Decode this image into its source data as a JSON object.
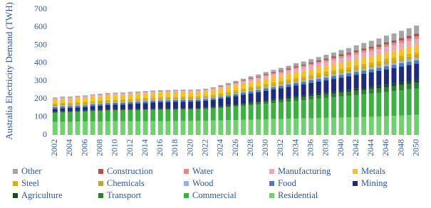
{
  "chart_data": {
    "type": "stacked-bar",
    "y_label": "Australia Electricity Demand (TWH)",
    "categories": [
      "2002",
      null,
      "2004",
      null,
      "2006",
      null,
      "2008",
      null,
      "2010",
      null,
      "2012",
      null,
      "2014",
      null,
      "2016",
      null,
      "2018",
      null,
      "2020",
      null,
      "2022",
      null,
      "2024",
      null,
      "2026",
      null,
      "2028",
      null,
      "2030",
      null,
      "2032",
      null,
      "2034",
      null,
      "2036",
      null,
      "2038",
      null,
      "2040",
      null,
      "2042",
      null,
      "2044",
      null,
      "2046",
      null,
      "2048",
      null,
      "2050"
    ],
    "ylim": [
      0,
      700
    ],
    "yticks": [
      0,
      100,
      200,
      300,
      400,
      500,
      600,
      700
    ],
    "series": [
      {
        "name": "Other",
        "color": "#a5a5a5",
        "values": [
          4,
          4,
          4,
          4,
          4,
          4,
          4,
          4,
          4,
          4,
          4,
          4,
          4,
          4,
          4,
          4,
          4,
          4,
          4,
          4,
          4,
          5,
          6,
          7,
          8,
          9,
          10,
          11,
          12,
          13,
          14,
          15,
          16,
          17,
          18,
          19,
          20,
          22,
          24,
          26,
          28,
          30,
          32,
          34,
          36,
          38,
          40,
          42,
          45
        ]
      },
      {
        "name": "Construction",
        "color": "#b5514d",
        "values": [
          1,
          1,
          1,
          1,
          1,
          1,
          1,
          1,
          1,
          1,
          1,
          1,
          1,
          1,
          1,
          1,
          1,
          1,
          1,
          1,
          1,
          1,
          2,
          2,
          3,
          3,
          4,
          4,
          5,
          5,
          6,
          6,
          7,
          7,
          8,
          8,
          9,
          9,
          10,
          10,
          11,
          11,
          12,
          12,
          13,
          13,
          14,
          14,
          15
        ]
      },
      {
        "name": "Water",
        "color": "#d98c8a",
        "values": [
          2,
          2,
          2,
          2,
          2,
          2,
          2,
          2,
          2,
          2,
          2,
          2,
          2,
          2,
          2,
          2,
          2,
          2,
          2,
          2,
          2,
          2,
          3,
          3,
          4,
          4,
          5,
          5,
          6,
          6,
          7,
          7,
          8,
          8,
          9,
          9,
          10,
          10,
          11,
          11,
          12,
          12,
          13,
          13,
          14,
          14,
          15,
          15,
          16
        ]
      },
      {
        "name": "Manufacturing",
        "color": "#e8aab8",
        "values": [
          5,
          5,
          5,
          5,
          5,
          5,
          5,
          5,
          5,
          5,
          5,
          5,
          5,
          5,
          5,
          5,
          5,
          5,
          5,
          5,
          5,
          6,
          7,
          8,
          9,
          10,
          11,
          12,
          13,
          14,
          15,
          16,
          17,
          18,
          19,
          20,
          21,
          22,
          23,
          24,
          25,
          26,
          27,
          28,
          29,
          30,
          31,
          32,
          33
        ]
      },
      {
        "name": "Metals",
        "color": "#f2c232",
        "values": [
          22,
          23,
          23,
          24,
          24,
          25,
          25,
          26,
          26,
          26,
          26,
          26,
          26,
          26,
          26,
          26,
          26,
          26,
          26,
          26,
          26,
          27,
          27,
          28,
          28,
          29,
          29,
          30,
          30,
          31,
          31,
          32,
          32,
          33,
          33,
          34,
          34,
          35,
          35,
          36,
          36,
          37,
          37,
          38,
          38,
          39,
          39,
          40,
          40
        ]
      },
      {
        "name": "Steel",
        "color": "#d6b400",
        "values": [
          6,
          6,
          6,
          6,
          6,
          6,
          6,
          6,
          6,
          6,
          6,
          6,
          6,
          6,
          6,
          6,
          6,
          6,
          6,
          6,
          6,
          6,
          6,
          7,
          7,
          7,
          8,
          8,
          8,
          9,
          9,
          9,
          10,
          10,
          10,
          11,
          11,
          11,
          12,
          12,
          12,
          13,
          13,
          13,
          14,
          14,
          14,
          15,
          15
        ]
      },
      {
        "name": "Chemicals",
        "color": "#c9a227",
        "values": [
          8,
          8,
          8,
          8,
          8,
          8,
          8,
          8,
          8,
          8,
          8,
          8,
          8,
          8,
          8,
          8,
          8,
          8,
          8,
          8,
          8,
          8,
          8,
          9,
          9,
          9,
          10,
          10,
          10,
          11,
          11,
          11,
          12,
          12,
          12,
          13,
          13,
          13,
          14,
          14,
          14,
          15,
          15,
          15,
          16,
          16,
          16,
          17,
          17
        ]
      },
      {
        "name": "Wood",
        "color": "#8fb4e3",
        "values": [
          5,
          5,
          5,
          5,
          5,
          5,
          5,
          5,
          5,
          5,
          5,
          5,
          5,
          5,
          5,
          5,
          5,
          5,
          5,
          5,
          5,
          5,
          5,
          5,
          6,
          6,
          6,
          6,
          7,
          7,
          7,
          7,
          8,
          8,
          8,
          8,
          9,
          9,
          9,
          9,
          10,
          10,
          10,
          10,
          11,
          11,
          11,
          11,
          12
        ]
      },
      {
        "name": "Food",
        "color": "#4a7ebb",
        "values": [
          10,
          10,
          10,
          10,
          10,
          10,
          10,
          10,
          10,
          10,
          10,
          10,
          10,
          10,
          10,
          10,
          10,
          10,
          10,
          10,
          10,
          10,
          11,
          11,
          11,
          12,
          12,
          12,
          13,
          13,
          13,
          14,
          14,
          14,
          15,
          15,
          15,
          16,
          16,
          16,
          17,
          17,
          17,
          18,
          18,
          18,
          19,
          19,
          19
        ]
      },
      {
        "name": "Mining",
        "color": "#1f2a78",
        "values": [
          15,
          16,
          16,
          17,
          18,
          20,
          22,
          23,
          24,
          25,
          27,
          29,
          31,
          33,
          34,
          35,
          36,
          36,
          36,
          36,
          37,
          38,
          40,
          42,
          44,
          46,
          48,
          50,
          52,
          54,
          56,
          58,
          60,
          62,
          64,
          66,
          68,
          70,
          72,
          74,
          76,
          78,
          80,
          82,
          84,
          86,
          88,
          90,
          92
        ]
      },
      {
        "name": "Agriculture",
        "color": "#1b4d1b",
        "values": [
          5,
          5,
          5,
          5,
          5,
          5,
          5,
          5,
          5,
          5,
          5,
          5,
          5,
          5,
          5,
          5,
          5,
          5,
          5,
          5,
          5,
          5,
          6,
          6,
          6,
          7,
          7,
          7,
          8,
          8,
          8,
          9,
          9,
          9,
          10,
          10,
          10,
          11,
          11,
          11,
          12,
          12,
          12,
          13,
          13,
          13,
          14,
          14,
          14
        ]
      },
      {
        "name": "Transport",
        "color": "#2e7d32",
        "values": [
          3,
          3,
          3,
          3,
          3,
          3,
          3,
          3,
          3,
          3,
          3,
          3,
          3,
          3,
          3,
          3,
          3,
          3,
          3,
          3,
          4,
          5,
          6,
          7,
          8,
          9,
          10,
          11,
          12,
          13,
          14,
          15,
          16,
          17,
          18,
          19,
          20,
          21,
          22,
          23,
          24,
          25,
          26,
          27,
          28,
          29,
          30,
          31,
          32
        ]
      },
      {
        "name": "Commercial",
        "color": "#3cb043",
        "values": [
          50,
          52,
          53,
          54,
          55,
          57,
          58,
          59,
          60,
          60,
          61,
          61,
          62,
          62,
          63,
          63,
          63,
          63,
          63,
          64,
          65,
          67,
          69,
          72,
          75,
          78,
          81,
          84,
          87,
          90,
          93,
          96,
          99,
          102,
          105,
          108,
          111,
          114,
          117,
          120,
          123,
          126,
          129,
          132,
          135,
          138,
          141,
          144,
          147
        ]
      },
      {
        "name": "Residential",
        "color": "#72d072",
        "values": [
          72,
          73,
          73,
          74,
          74,
          75,
          75,
          76,
          76,
          76,
          76,
          76,
          76,
          77,
          77,
          77,
          77,
          78,
          78,
          78,
          79,
          80,
          81,
          82,
          83,
          84,
          85,
          86,
          87,
          88,
          89,
          90,
          91,
          92,
          93,
          94,
          95,
          96,
          97,
          98,
          99,
          100,
          101,
          102,
          104,
          106,
          108,
          110,
          112
        ]
      }
    ]
  }
}
